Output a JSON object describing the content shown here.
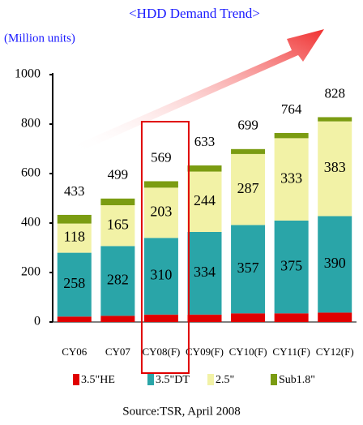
{
  "chart_data": {
    "type": "stacked_bar",
    "title": "<HDD Demand Trend>",
    "y_label": "(Million units)",
    "source": "Source:TSR, April 2008",
    "categories": [
      "CY06",
      "CY07",
      "CY08(F)",
      "CY09(F)",
      "CY10(F)",
      "CY11(F)",
      "CY12(F)"
    ],
    "series": [
      {
        "name": "3.5\"HE",
        "color": "#e00000",
        "values": [
          22,
          25,
          30,
          30,
          35,
          35,
          38
        ]
      },
      {
        "name": "3.5\"DT",
        "color": "#2aa5a8",
        "values": [
          258,
          282,
          310,
          334,
          357,
          375,
          390
        ],
        "labeled": true
      },
      {
        "name": "2.5\"",
        "color": "#f2f2a6",
        "values": [
          118,
          165,
          203,
          244,
          287,
          333,
          383
        ],
        "labeled": true
      },
      {
        "name": "Sub1.8\"",
        "color": "#7b9c12",
        "values": [
          35,
          27,
          26,
          25,
          20,
          21,
          17
        ]
      }
    ],
    "totals": [
      433,
      499,
      569,
      633,
      699,
      764,
      828
    ],
    "ylim": [
      0,
      1000
    ],
    "yticks": [
      0,
      200,
      400,
      600,
      800,
      1000
    ]
  }
}
